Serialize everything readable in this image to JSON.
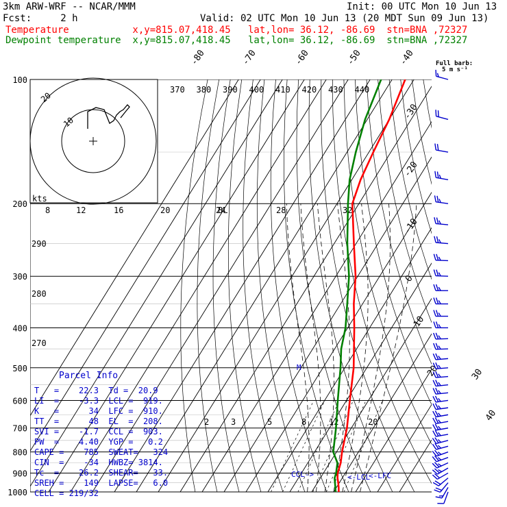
{
  "header": {
    "model": "3km ARW-WRF -- NCAR/MMM",
    "init": "Init: 00 UTC Mon 10 Jun 13",
    "fcst": "Fcst:     2 h",
    "valid": "Valid: 02 UTC Mon 10 Jun 13 (20 MDT Sun 09 Jun 13)",
    "line_temp": "Temperature           x,y=815.07,418.45   lat,lon= 36.12, -86.69  stn=BNA ,72327",
    "line_dew": "Dewpoint temperature  x,y=815.07,418.45   lat,lon= 36.12, -86.69  stn=BNA ,72327"
  },
  "colors": {
    "temperature": "#ff0000",
    "dewpoint": "#008000",
    "parcel_text": "#0000cc",
    "grid": "#000000",
    "barbs": "#0000cc"
  },
  "chart_data": {
    "type": "line",
    "title": "",
    "xlabel": "",
    "ylabel": "",
    "ylim": [
      1000,
      100
    ],
    "y_scale": "log-pressure",
    "pressure_levels": [
      100,
      200,
      300,
      400,
      500,
      600,
      700,
      800,
      900,
      1000
    ],
    "skewed_isotherm_labels": [
      "-80",
      "-70",
      "-60",
      "-50",
      "-40",
      "-30",
      "-20",
      "-10",
      "0",
      "10",
      "20",
      "30",
      "40"
    ],
    "potential_temp_labels": [
      "370",
      "380",
      "390",
      "400",
      "410",
      "420",
      "430",
      "440"
    ],
    "dry_adiabat_labels": [
      "290",
      "280",
      "270"
    ],
    "mixing_ratio_labels": [
      "2",
      "3",
      "5",
      "8",
      "12",
      "20"
    ],
    "hodograph_speed_labels": [
      "8",
      "12",
      "16",
      "20",
      "24",
      "28",
      "32"
    ],
    "hodograph": {
      "units": "kts",
      "ring_labels": [
        "20",
        "10"
      ],
      "annotation": "BL"
    },
    "barb_key": "Full barb: 5 m s⁻¹",
    "level_markers": [
      {
        "label": "CCL",
        "pressure": 903
      },
      {
        "label": "LCL",
        "pressure": 919
      },
      {
        "label": "LFC",
        "pressure": 910
      },
      {
        "label": "M",
        "pressure": 500
      }
    ],
    "series": [
      {
        "name": "Temperature",
        "points": [
          [
            1000,
            22.3
          ],
          [
            975,
            21.0
          ],
          [
            950,
            19.5
          ],
          [
            925,
            17.8
          ],
          [
            900,
            16.5
          ],
          [
            850,
            15.0
          ],
          [
            800,
            12.5
          ],
          [
            700,
            8.0
          ],
          [
            600,
            1.5
          ],
          [
            500,
            -6.0
          ],
          [
            400,
            -17.0
          ],
          [
            350,
            -24.0
          ],
          [
            300,
            -31.0
          ],
          [
            250,
            -41.0
          ],
          [
            200,
            -53.0
          ],
          [
            175,
            -56.0
          ],
          [
            150,
            -58.0
          ],
          [
            125,
            -60.0
          ],
          [
            100,
            -64.0
          ]
        ]
      },
      {
        "name": "Dewpoint temperature",
        "points": [
          [
            1000,
            20.9
          ],
          [
            975,
            19.5
          ],
          [
            950,
            18.0
          ],
          [
            925,
            16.5
          ],
          [
            900,
            15.8
          ],
          [
            850,
            13.5
          ],
          [
            800,
            8.5
          ],
          [
            700,
            3.0
          ],
          [
            600,
            -4.0
          ],
          [
            500,
            -12.0
          ],
          [
            450,
            -17.0
          ],
          [
            400,
            -21.0
          ],
          [
            350,
            -27.0
          ],
          [
            300,
            -34.0
          ],
          [
            250,
            -44.0
          ],
          [
            200,
            -55.0
          ],
          [
            175,
            -61.0
          ],
          [
            150,
            -66.0
          ],
          [
            125,
            -71.0
          ],
          [
            100,
            -75.0
          ]
        ]
      }
    ],
    "wind_barbs": [
      {
        "p": 1000,
        "dir": 200,
        "spd": 10
      },
      {
        "p": 975,
        "dir": 210,
        "spd": 15
      },
      {
        "p": 950,
        "dir": 220,
        "spd": 20
      },
      {
        "p": 925,
        "dir": 230,
        "spd": 20
      },
      {
        "p": 900,
        "dir": 240,
        "spd": 20
      },
      {
        "p": 875,
        "dir": 240,
        "spd": 25
      },
      {
        "p": 850,
        "dir": 245,
        "spd": 25
      },
      {
        "p": 825,
        "dir": 250,
        "spd": 25
      },
      {
        "p": 800,
        "dir": 250,
        "spd": 25
      },
      {
        "p": 775,
        "dir": 255,
        "spd": 25
      },
      {
        "p": 750,
        "dir": 255,
        "spd": 25
      },
      {
        "p": 725,
        "dir": 260,
        "spd": 25
      },
      {
        "p": 700,
        "dir": 260,
        "spd": 25
      },
      {
        "p": 675,
        "dir": 260,
        "spd": 25
      },
      {
        "p": 650,
        "dir": 260,
        "spd": 25
      },
      {
        "p": 625,
        "dir": 262,
        "spd": 25
      },
      {
        "p": 600,
        "dir": 262,
        "spd": 25
      },
      {
        "p": 575,
        "dir": 264,
        "spd": 25
      },
      {
        "p": 550,
        "dir": 264,
        "spd": 25
      },
      {
        "p": 525,
        "dir": 265,
        "spd": 25
      },
      {
        "p": 500,
        "dir": 265,
        "spd": 25
      },
      {
        "p": 475,
        "dir": 265,
        "spd": 25
      },
      {
        "p": 450,
        "dir": 268,
        "spd": 25
      },
      {
        "p": 425,
        "dir": 268,
        "spd": 25
      },
      {
        "p": 400,
        "dir": 270,
        "spd": 25
      },
      {
        "p": 375,
        "dir": 270,
        "spd": 25
      },
      {
        "p": 350,
        "dir": 270,
        "spd": 25
      },
      {
        "p": 325,
        "dir": 270,
        "spd": 25
      },
      {
        "p": 300,
        "dir": 272,
        "spd": 25
      },
      {
        "p": 275,
        "dir": 272,
        "spd": 25
      },
      {
        "p": 250,
        "dir": 275,
        "spd": 25
      },
      {
        "p": 225,
        "dir": 275,
        "spd": 25
      },
      {
        "p": 200,
        "dir": 278,
        "spd": 25
      },
      {
        "p": 175,
        "dir": 280,
        "spd": 25
      },
      {
        "p": 150,
        "dir": 280,
        "spd": 20
      },
      {
        "p": 125,
        "dir": 285,
        "spd": 20
      },
      {
        "p": 100,
        "dir": 285,
        "spd": 15
      }
    ]
  },
  "parcel_info": {
    "title": "Parcel Info",
    "rows": [
      "T   =    22.3  Td =  20.9",
      "LI  =    -3.3  LCL =  919.",
      "K   =      34  LFC =  910.",
      "TT  =      48  EL  =  208.",
      "SVI =    -1.7  CCL =  903.",
      "PW  =    4.40  YGP =   0.2",
      "CAPE =    785  SWEAT=   324",
      "CIN  =    -34  HWBZ= 3814.",
      "Tc  =    26.2  SHEAR=   33.",
      "SREH =    149  LAPSE=   6.0",
      "CELL = 219/32"
    ]
  }
}
